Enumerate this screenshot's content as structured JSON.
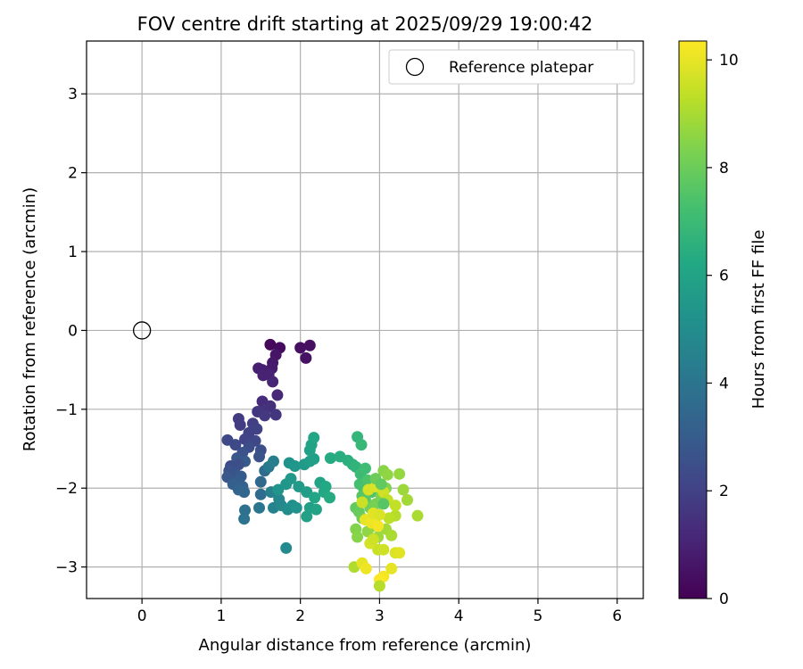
{
  "chart_data": {
    "type": "scatter",
    "title": "FOV centre drift starting at 2025/09/29 19:00:42",
    "xlabel": "Angular distance from reference (arcmin)",
    "ylabel": "Rotation from reference (arcmin)",
    "xlim": [
      -0.7,
      6.33
    ],
    "ylim": [
      -3.4,
      3.67
    ],
    "xticks": [
      0,
      1,
      2,
      3,
      4,
      5,
      6
    ],
    "yticks": [
      -3,
      -2,
      -1,
      0,
      1,
      2,
      3
    ],
    "xtick_labels": [
      "0",
      "1",
      "2",
      "3",
      "4",
      "5",
      "6"
    ],
    "ytick_labels": [
      "−3",
      "−2",
      "−1",
      "0",
      "1",
      "2",
      "3"
    ],
    "grid": true,
    "legend": {
      "position": "top-right",
      "entries": [
        {
          "label": "Reference platepar",
          "marker": "open-circle"
        }
      ]
    },
    "reference_point": {
      "x": 0,
      "y": 0
    },
    "colorbar": {
      "label": "Hours from first FF file",
      "colormap": "viridis",
      "range": [
        0,
        10.35
      ],
      "ticks": [
        0,
        2,
        4,
        6,
        8,
        10
      ],
      "tick_labels": [
        "0",
        "2",
        "4",
        "6",
        "8",
        "10"
      ]
    },
    "points": [
      {
        "x": 1.62,
        "y": -0.18,
        "c": 0.2
      },
      {
        "x": 1.74,
        "y": -0.22,
        "c": 0.3
      },
      {
        "x": 2.0,
        "y": -0.22,
        "c": 0.4
      },
      {
        "x": 2.12,
        "y": -0.19,
        "c": 0.4
      },
      {
        "x": 2.07,
        "y": -0.35,
        "c": 0.5
      },
      {
        "x": 1.69,
        "y": -0.31,
        "c": 0.6
      },
      {
        "x": 1.65,
        "y": -0.41,
        "c": 0.7
      },
      {
        "x": 1.64,
        "y": -0.48,
        "c": 0.8
      },
      {
        "x": 1.47,
        "y": -0.48,
        "c": 0.9
      },
      {
        "x": 1.52,
        "y": -0.5,
        "c": 0.9
      },
      {
        "x": 1.53,
        "y": -0.57,
        "c": 1.0
      },
      {
        "x": 1.6,
        "y": -0.56,
        "c": 1.0
      },
      {
        "x": 1.65,
        "y": -0.65,
        "c": 1.1
      },
      {
        "x": 1.71,
        "y": -0.82,
        "c": 1.2
      },
      {
        "x": 1.52,
        "y": -0.9,
        "c": 1.3
      },
      {
        "x": 1.62,
        "y": -0.96,
        "c": 1.4
      },
      {
        "x": 1.56,
        "y": -1.0,
        "c": 1.5
      },
      {
        "x": 1.46,
        "y": -1.03,
        "c": 1.6
      },
      {
        "x": 1.69,
        "y": -1.07,
        "c": 1.6
      },
      {
        "x": 1.55,
        "y": -1.08,
        "c": 1.7
      },
      {
        "x": 1.22,
        "y": -1.12,
        "c": 1.8
      },
      {
        "x": 1.24,
        "y": -1.2,
        "c": 1.8
      },
      {
        "x": 1.4,
        "y": -1.18,
        "c": 1.9
      },
      {
        "x": 1.45,
        "y": -1.25,
        "c": 2.0
      },
      {
        "x": 1.35,
        "y": -1.3,
        "c": 2.0
      },
      {
        "x": 1.3,
        "y": -1.38,
        "c": 2.1
      },
      {
        "x": 1.43,
        "y": -1.4,
        "c": 2.2
      },
      {
        "x": 1.08,
        "y": -1.39,
        "c": 2.3
      },
      {
        "x": 1.18,
        "y": -1.45,
        "c": 2.3
      },
      {
        "x": 1.35,
        "y": -1.48,
        "c": 2.4
      },
      {
        "x": 1.5,
        "y": -1.52,
        "c": 2.5
      },
      {
        "x": 1.27,
        "y": -1.55,
        "c": 2.6
      },
      {
        "x": 1.48,
        "y": -1.6,
        "c": 2.7
      },
      {
        "x": 1.2,
        "y": -1.62,
        "c": 2.8
      },
      {
        "x": 1.3,
        "y": -1.66,
        "c": 2.9
      },
      {
        "x": 1.12,
        "y": -1.72,
        "c": 2.4
      },
      {
        "x": 1.22,
        "y": -1.7,
        "c": 2.5
      },
      {
        "x": 1.1,
        "y": -1.78,
        "c": 2.6
      },
      {
        "x": 1.18,
        "y": -1.82,
        "c": 2.7
      },
      {
        "x": 1.08,
        "y": -1.86,
        "c": 2.8
      },
      {
        "x": 1.25,
        "y": -1.85,
        "c": 2.9
      },
      {
        "x": 1.2,
        "y": -1.92,
        "c": 3.0
      },
      {
        "x": 1.15,
        "y": -1.95,
        "c": 3.1
      },
      {
        "x": 1.27,
        "y": -1.98,
        "c": 3.2
      },
      {
        "x": 1.22,
        "y": -2.02,
        "c": 3.3
      },
      {
        "x": 1.29,
        "y": -2.05,
        "c": 3.4
      },
      {
        "x": 1.5,
        "y": -1.92,
        "c": 3.5
      },
      {
        "x": 1.55,
        "y": -1.78,
        "c": 3.6
      },
      {
        "x": 1.5,
        "y": -2.08,
        "c": 3.7
      },
      {
        "x": 1.3,
        "y": -2.28,
        "c": 3.8
      },
      {
        "x": 1.29,
        "y": -2.39,
        "c": 3.9
      },
      {
        "x": 1.48,
        "y": -2.25,
        "c": 4.0
      },
      {
        "x": 1.6,
        "y": -1.73,
        "c": 4.2
      },
      {
        "x": 1.66,
        "y": -1.66,
        "c": 4.4
      },
      {
        "x": 1.63,
        "y": -2.05,
        "c": 4.5
      },
      {
        "x": 1.66,
        "y": -2.25,
        "c": 4.6
      },
      {
        "x": 1.73,
        "y": -2.14,
        "c": 4.7
      },
      {
        "x": 1.76,
        "y": -2.22,
        "c": 4.8
      },
      {
        "x": 1.82,
        "y": -2.76,
        "c": 4.9
      },
      {
        "x": 1.84,
        "y": -2.27,
        "c": 5.0
      },
      {
        "x": 1.9,
        "y": -2.22,
        "c": 5.1
      },
      {
        "x": 1.95,
        "y": -2.25,
        "c": 5.2
      },
      {
        "x": 1.72,
        "y": -2.02,
        "c": 5.3
      },
      {
        "x": 1.82,
        "y": -1.95,
        "c": 5.4
      },
      {
        "x": 1.88,
        "y": -1.88,
        "c": 5.5
      },
      {
        "x": 1.98,
        "y": -1.98,
        "c": 5.6
      },
      {
        "x": 2.08,
        "y": -2.05,
        "c": 5.7
      },
      {
        "x": 2.12,
        "y": -2.25,
        "c": 5.8
      },
      {
        "x": 2.08,
        "y": -2.36,
        "c": 5.9
      },
      {
        "x": 2.2,
        "y": -2.27,
        "c": 6.0
      },
      {
        "x": 2.18,
        "y": -2.12,
        "c": 6.1
      },
      {
        "x": 2.3,
        "y": -2.05,
        "c": 6.2
      },
      {
        "x": 2.37,
        "y": -2.12,
        "c": 6.3
      },
      {
        "x": 1.86,
        "y": -1.68,
        "c": 5.2
      },
      {
        "x": 1.93,
        "y": -1.72,
        "c": 5.4
      },
      {
        "x": 2.05,
        "y": -1.7,
        "c": 5.6
      },
      {
        "x": 2.12,
        "y": -1.66,
        "c": 5.7
      },
      {
        "x": 2.17,
        "y": -1.63,
        "c": 5.8
      },
      {
        "x": 2.12,
        "y": -1.52,
        "c": 5.9
      },
      {
        "x": 2.14,
        "y": -1.45,
        "c": 6.0
      },
      {
        "x": 2.17,
        "y": -1.36,
        "c": 6.1
      },
      {
        "x": 2.25,
        "y": -1.93,
        "c": 6.0
      },
      {
        "x": 2.32,
        "y": -1.98,
        "c": 6.2
      },
      {
        "x": 2.38,
        "y": -1.62,
        "c": 6.3
      },
      {
        "x": 2.5,
        "y": -1.6,
        "c": 6.4
      },
      {
        "x": 2.6,
        "y": -1.65,
        "c": 6.5
      },
      {
        "x": 2.66,
        "y": -1.7,
        "c": 6.6
      },
      {
        "x": 2.7,
        "y": -1.73,
        "c": 6.7
      },
      {
        "x": 2.72,
        "y": -1.35,
        "c": 6.8
      },
      {
        "x": 2.77,
        "y": -1.45,
        "c": 6.9
      },
      {
        "x": 2.76,
        "y": -1.82,
        "c": 7.0
      },
      {
        "x": 2.82,
        "y": -1.75,
        "c": 7.1
      },
      {
        "x": 2.75,
        "y": -1.95,
        "c": 7.2
      },
      {
        "x": 2.8,
        "y": -2.0,
        "c": 7.3
      },
      {
        "x": 2.85,
        "y": -1.9,
        "c": 7.4
      },
      {
        "x": 2.9,
        "y": -2.05,
        "c": 7.5
      },
      {
        "x": 2.78,
        "y": -2.1,
        "c": 7.6
      },
      {
        "x": 2.82,
        "y": -2.15,
        "c": 7.7
      },
      {
        "x": 2.7,
        "y": -2.25,
        "c": 7.8
      },
      {
        "x": 2.74,
        "y": -2.3,
        "c": 7.9
      },
      {
        "x": 2.78,
        "y": -2.38,
        "c": 8.0
      },
      {
        "x": 2.88,
        "y": -2.25,
        "c": 8.1
      },
      {
        "x": 2.95,
        "y": -2.2,
        "c": 8.2
      },
      {
        "x": 3.02,
        "y": -2.1,
        "c": 8.3
      },
      {
        "x": 3.08,
        "y": -2.0,
        "c": 8.4
      },
      {
        "x": 3.05,
        "y": -1.78,
        "c": 8.5
      },
      {
        "x": 3.1,
        "y": -1.83,
        "c": 8.6
      },
      {
        "x": 3.25,
        "y": -1.82,
        "c": 8.7
      },
      {
        "x": 3.3,
        "y": -2.02,
        "c": 8.8
      },
      {
        "x": 3.35,
        "y": -2.15,
        "c": 8.9
      },
      {
        "x": 3.48,
        "y": -2.35,
        "c": 9.0
      },
      {
        "x": 2.7,
        "y": -2.52,
        "c": 8.4
      },
      {
        "x": 2.72,
        "y": -2.62,
        "c": 8.5
      },
      {
        "x": 2.85,
        "y": -2.55,
        "c": 8.6
      },
      {
        "x": 2.92,
        "y": -2.48,
        "c": 8.7
      },
      {
        "x": 2.98,
        "y": -2.62,
        "c": 8.8
      },
      {
        "x": 3.08,
        "y": -2.52,
        "c": 8.9
      },
      {
        "x": 3.15,
        "y": -2.6,
        "c": 9.0
      },
      {
        "x": 2.68,
        "y": -3.0,
        "c": 9.1
      },
      {
        "x": 3.2,
        "y": -2.35,
        "c": 9.2
      },
      {
        "x": 3.12,
        "y": -2.38,
        "c": 9.3
      },
      {
        "x": 3.2,
        "y": -2.22,
        "c": 9.4
      },
      {
        "x": 2.98,
        "y": -2.78,
        "c": 9.5
      },
      {
        "x": 3.05,
        "y": -2.78,
        "c": 9.6
      },
      {
        "x": 2.88,
        "y": -2.7,
        "c": 9.7
      },
      {
        "x": 2.92,
        "y": -2.65,
        "c": 9.6
      },
      {
        "x": 3.2,
        "y": -2.82,
        "c": 9.8
      },
      {
        "x": 3.25,
        "y": -2.82,
        "c": 9.9
      },
      {
        "x": 3.15,
        "y": -3.02,
        "c": 10.0
      },
      {
        "x": 2.78,
        "y": -2.95,
        "c": 10.0
      },
      {
        "x": 2.83,
        "y": -3.02,
        "c": 10.1
      },
      {
        "x": 3.05,
        "y": -3.12,
        "c": 10.2
      },
      {
        "x": 3.0,
        "y": -3.16,
        "c": 10.3
      },
      {
        "x": 3.0,
        "y": -3.24,
        "c": 9.2
      },
      {
        "x": 2.82,
        "y": -2.4,
        "c": 10.0
      },
      {
        "x": 2.9,
        "y": -2.44,
        "c": 10.1
      },
      {
        "x": 2.98,
        "y": -2.48,
        "c": 10.2
      },
      {
        "x": 2.92,
        "y": -2.32,
        "c": 9.9
      },
      {
        "x": 3.0,
        "y": -2.34,
        "c": 9.8
      },
      {
        "x": 2.78,
        "y": -2.18,
        "c": 9.5
      },
      {
        "x": 2.86,
        "y": -2.02,
        "c": 9.7
      },
      {
        "x": 2.95,
        "y": -1.98,
        "c": 9.8
      },
      {
        "x": 3.05,
        "y": -2.05,
        "c": 9.6
      },
      {
        "x": 3.1,
        "y": -2.15,
        "c": 9.4
      },
      {
        "x": 2.95,
        "y": -1.88,
        "c": 8.0
      },
      {
        "x": 3.02,
        "y": -1.95,
        "c": 7.8
      },
      {
        "x": 3.05,
        "y": -2.2,
        "c": 7.6
      }
    ]
  }
}
